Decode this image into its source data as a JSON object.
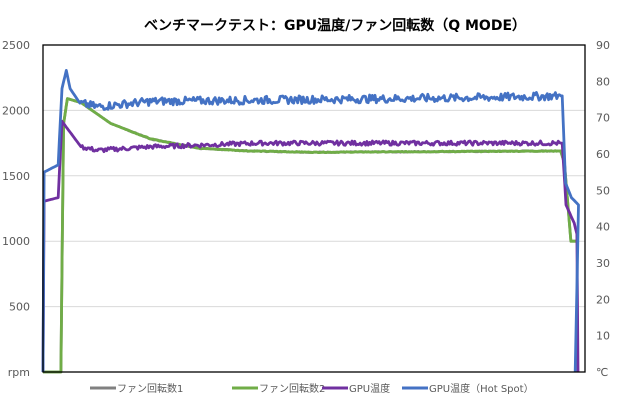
{
  "chart_data": {
    "type": "line",
    "title": "ベンチマークテスト：GPU温度/ファン回転数（Q MODE）",
    "xlabel": "",
    "ylabel_left": "rpm",
    "ylabel_right": "℃",
    "ylim_left": [
      0,
      2500
    ],
    "ylim_right": [
      0,
      90
    ],
    "left_ticks": [
      "rpm",
      "500",
      "1000",
      "1500",
      "2000",
      "2500"
    ],
    "right_ticks": [
      "℃",
      "10",
      "20",
      "30",
      "40",
      "50",
      "60",
      "70",
      "80",
      "90"
    ],
    "x_range": [
      0,
      100
    ],
    "grid": true,
    "legend_position": "bottom",
    "series": [
      {
        "name": "ファン回転数1",
        "axis": "left",
        "color": "#808080",
        "points": [
          [
            0,
            0
          ],
          [
            3.3,
            0
          ],
          [
            3.8,
            1900
          ],
          [
            4.5,
            2090
          ],
          [
            7,
            2060
          ],
          [
            12.5,
            1900
          ],
          [
            20,
            1780
          ],
          [
            29,
            1710
          ],
          [
            38,
            1690
          ],
          [
            50,
            1680
          ],
          [
            95.5,
            1690
          ],
          [
            96.2,
            1600
          ],
          [
            97.4,
            1000
          ],
          [
            98.5,
            1000
          ]
        ]
      },
      {
        "name": "ファン回転数2",
        "axis": "left",
        "color": "#70ad47",
        "points": [
          [
            0,
            0
          ],
          [
            3.3,
            0
          ],
          [
            3.8,
            1900
          ],
          [
            4.5,
            2090
          ],
          [
            7,
            2060
          ],
          [
            12.5,
            1900
          ],
          [
            20,
            1780
          ],
          [
            29,
            1710
          ],
          [
            38,
            1690
          ],
          [
            50,
            1680
          ],
          [
            95.5,
            1690
          ],
          [
            96.2,
            1600
          ],
          [
            97.4,
            1000
          ],
          [
            98.5,
            1000
          ]
        ]
      },
      {
        "name": "GPU温度",
        "axis": "right",
        "color": "#7030a0",
        "points": [
          [
            0,
            0
          ],
          [
            0.2,
            47
          ],
          [
            2.8,
            48
          ],
          [
            3.5,
            69
          ],
          [
            4.5,
            67
          ],
          [
            7,
            62
          ],
          [
            10,
            61
          ],
          [
            20,
            62
          ],
          [
            40,
            63
          ],
          [
            95.8,
            63
          ],
          [
            96.5,
            46
          ],
          [
            98,
            41
          ],
          [
            98.5,
            38
          ],
          [
            98.7,
            0
          ]
        ]
      },
      {
        "name": "GPU温度（Hot Spot）",
        "axis": "right",
        "color": "#4472c4",
        "points": [
          [
            0,
            0
          ],
          [
            0.2,
            55
          ],
          [
            2.8,
            57
          ],
          [
            3.5,
            78
          ],
          [
            4.3,
            83
          ],
          [
            5,
            78
          ],
          [
            6.8,
            74
          ],
          [
            10,
            73
          ],
          [
            20,
            74.5
          ],
          [
            50,
            75
          ],
          [
            80,
            75.5
          ],
          [
            95.8,
            76
          ],
          [
            96.4,
            52
          ],
          [
            97.5,
            48
          ],
          [
            98.8,
            46
          ],
          [
            98.2,
            0
          ]
        ]
      }
    ]
  }
}
